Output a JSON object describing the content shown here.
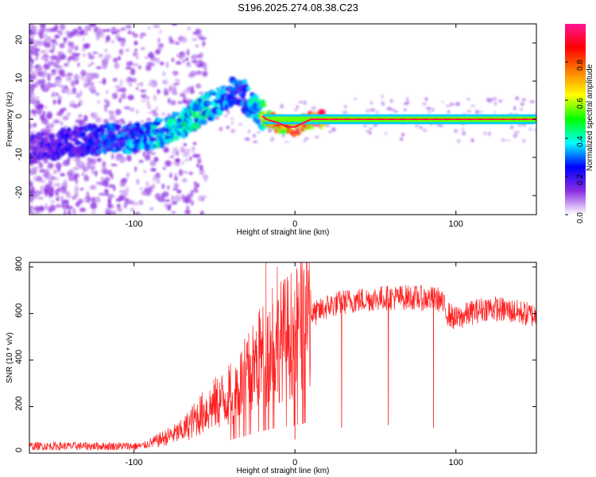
{
  "title": "S196.2025.274.08.38.C23",
  "chart_data": [
    {
      "type": "heatmap",
      "xlabel": "Height of straight line (km)",
      "ylabel": "Frequency (Hz)",
      "xlim": [
        -165,
        150
      ],
      "ylim": [
        -25,
        25
      ],
      "xticks": [
        -100,
        0,
        100
      ],
      "yticks": [
        -20,
        -10,
        0,
        10,
        20
      ],
      "colorbar": {
        "label": "Normalized spectral amplitude",
        "range": [
          0,
          1
        ],
        "ticks": [
          "0.0",
          "0.2",
          "0.4",
          "0.6",
          "0.8"
        ],
        "tick_values": [
          0.0,
          0.2,
          0.4,
          0.6,
          0.8
        ],
        "colors": [
          "#ffffff",
          "#8a2be2",
          "#0000ff",
          "#00ffff",
          "#00ff00",
          "#ffff00",
          "#ff8000",
          "#ff0000",
          "#ff1493"
        ]
      },
      "ridge": {
        "name": "frequency track",
        "x": [
          -165,
          -140,
          -120,
          -100,
          -80,
          -65,
          -55,
          -45,
          -35,
          -25,
          -18,
          -10,
          -5,
          0,
          5,
          10,
          15,
          20,
          150
        ],
        "y": [
          -8,
          -6,
          -5,
          -5,
          -3,
          0,
          3,
          5,
          8,
          3,
          0,
          -1,
          -2,
          -2,
          -1,
          0,
          0,
          0,
          0
        ],
        "amplitude": [
          0.15,
          0.2,
          0.25,
          0.3,
          0.35,
          0.4,
          0.35,
          0.3,
          0.25,
          0.35,
          0.6,
          0.7,
          0.75,
          0.8,
          0.8,
          0.85,
          0.9,
          0.95,
          0.95
        ]
      }
    },
    {
      "type": "line",
      "xlabel": "Height of straight line (km)",
      "ylabel": "SNR (10 * v/v)",
      "xlim": [
        -165,
        150
      ],
      "ylim": [
        0,
        820
      ],
      "xticks": [
        -100,
        0,
        100
      ],
      "yticks": [
        0,
        200,
        400,
        600,
        800
      ],
      "series": [
        {
          "name": "SNR",
          "color": "#ff2020",
          "envelope_x": [
            -165,
            -120,
            -95,
            -85,
            -70,
            -60,
            -50,
            -40,
            -30,
            -20,
            -10,
            0,
            10,
            20,
            30,
            50,
            70,
            90,
            95,
            100,
            110,
            120,
            135,
            150
          ],
          "envelope_y": [
            30,
            30,
            30,
            55,
            95,
            160,
            210,
            250,
            330,
            420,
            480,
            520,
            590,
            630,
            650,
            665,
            670,
            660,
            600,
            575,
            605,
            625,
            610,
            590
          ],
          "spikes": [
            {
              "x": -18,
              "y": 820
            },
            {
              "x": -11,
              "y": 800
            },
            {
              "x": -14,
              "y": 710
            },
            {
              "x": -22,
              "y": 620
            }
          ],
          "dips": [
            {
              "x": 29,
              "y": 110
            },
            {
              "x": 58,
              "y": 120
            },
            {
              "x": 86,
              "y": 110
            },
            {
              "x": 0,
              "y": 60
            }
          ]
        }
      ]
    }
  ]
}
